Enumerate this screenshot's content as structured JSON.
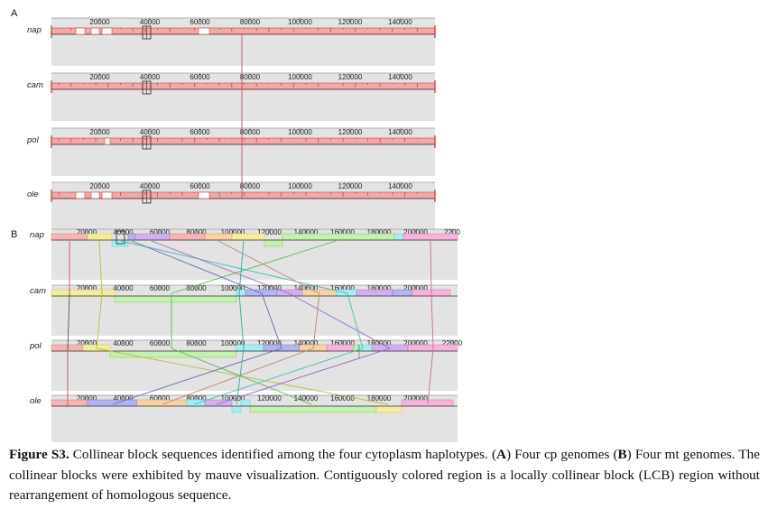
{
  "panels": [
    {
      "letter": "A",
      "tracks": [
        {
          "name": "nap",
          "ticks": [
            "20000",
            "40000",
            "60000",
            "80000",
            "100000",
            "120000",
            "140000"
          ]
        },
        {
          "name": "cam",
          "ticks": [
            "20000",
            "40000",
            "60000",
            "80000",
            "100000",
            "120000",
            "140000"
          ]
        },
        {
          "name": "pol",
          "ticks": [
            "20000",
            "40000",
            "60000",
            "80000",
            "100000",
            "120000",
            "140000"
          ]
        },
        {
          "name": "ole",
          "ticks": [
            "20000",
            "40000",
            "60000",
            "80000",
            "100000",
            "120000",
            "140000"
          ]
        }
      ]
    },
    {
      "letter": "B",
      "tracks": [
        {
          "name": "nap",
          "ticks": [
            "20000",
            "40000",
            "60000",
            "80000",
            "100000",
            "120000",
            "140000",
            "160000",
            "180000",
            "200000",
            "2200"
          ]
        },
        {
          "name": "cam",
          "ticks": [
            "20000",
            "40000",
            "60000",
            "80000",
            "100000",
            "120000",
            "140000",
            "160000",
            "180000",
            "200000"
          ]
        },
        {
          "name": "pol",
          "ticks": [
            "20000",
            "40000",
            "60000",
            "80000",
            "100000",
            "120000",
            "140000",
            "160000",
            "180000",
            "200000",
            "22000"
          ]
        },
        {
          "name": "ole",
          "ticks": [
            "20000",
            "40000",
            "60000",
            "80000",
            "100000",
            "120000",
            "140000",
            "160000",
            "180000",
            "200000"
          ]
        }
      ]
    }
  ],
  "caption": {
    "label": "Figure S3.",
    "pre": " Collinear block sequences identified among the four cytoplasm haplotypes. (",
    "a": "A",
    "mid": ") Four cp genomes (",
    "b": "B",
    "post": ") Four mt genomes. The collinear blocks were exhibited by mauve visualization. Contiguously colored region is a locally collinear block (LCB) region without rearrangement of homologous sequence."
  },
  "colors": {
    "cp_block": "#f4a8a8",
    "cp_edge": "#c24848",
    "track_bg": "#e3e3e3",
    "mt_red": "#f7b4b4",
    "mt_yellow": "#f4ec9e",
    "mt_blue": "#b4b4ef",
    "mt_cyan": "#a6eef2",
    "mt_purple": "#d1b0ef",
    "mt_peach": "#f6d2a4",
    "mt_green": "#c6f0b0",
    "mt_pink": "#f6b4dc"
  }
}
